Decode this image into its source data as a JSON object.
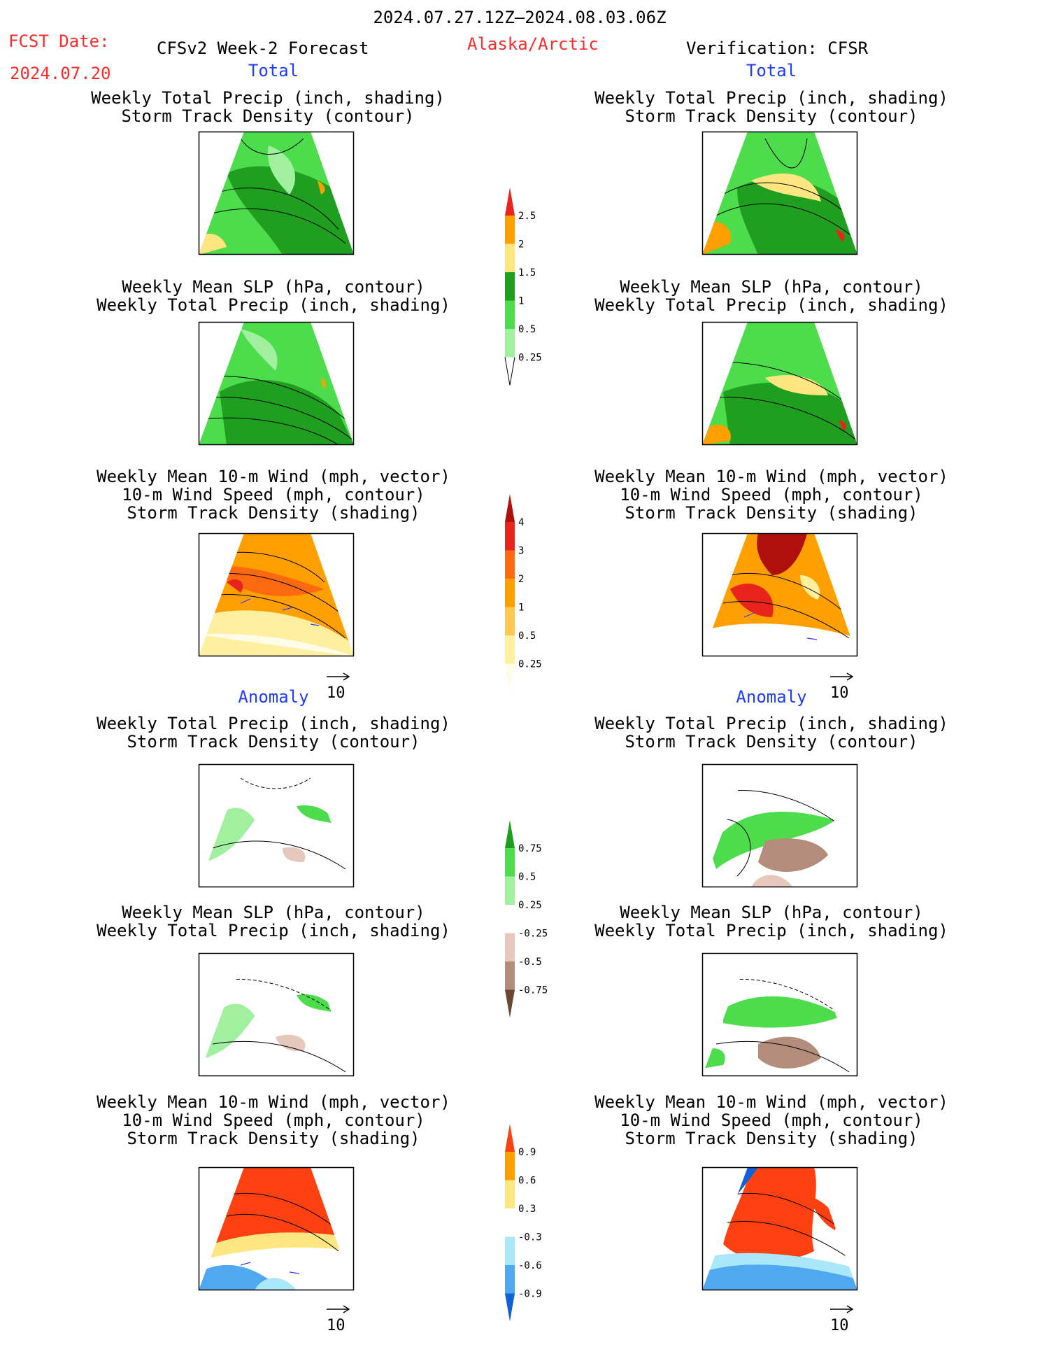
{
  "header": {
    "date_range": "2024.07.27.12Z–2024.08.03.06Z",
    "fcst_label": "FCST Date:",
    "fcst_date": "2024.07.20",
    "forecast_title": "CFSv2 Week-2 Forecast",
    "region": "Alaska/Arctic",
    "verification": "Verification: CFSR"
  },
  "sections": {
    "total": "Total",
    "anomaly": "Anomaly"
  },
  "titles": {
    "precip_storm": [
      "Weekly Total Precip (inch, shading)",
      "Storm Track Density (contour)"
    ],
    "slp_precip": [
      "Weekly Mean SLP (hPa, contour)",
      "Weekly Total Precip (inch, shading)"
    ],
    "wind_storm": [
      "Weekly Mean 10-m Wind (mph, vector)",
      "10-m Wind Speed (mph, contour)",
      "Storm Track Density (shading)"
    ]
  },
  "wind_reference": "10",
  "colorbars": [
    {
      "name": "precip-total",
      "labels": [
        "2.5",
        "2",
        "1.5",
        "1",
        "0.5",
        "0.25"
      ],
      "colors": [
        "#e8241c",
        "#ffa000",
        "#ffe680",
        "#1f9e1f",
        "#4cdc4c",
        "#a0f0a0"
      ]
    },
    {
      "name": "storm-total",
      "labels": [
        "4",
        "3",
        "2",
        "1",
        "0.5",
        "0.25"
      ],
      "colors": [
        "#b0100c",
        "#e8241c",
        "#ff6a10",
        "#ffa000",
        "#ffc850",
        "#fff0a0",
        "#fffce8"
      ]
    },
    {
      "name": "precip-anom",
      "labels": [
        "0.75",
        "0.5",
        "0.25",
        "-0.25",
        "-0.5",
        "-0.75"
      ],
      "colors": [
        "#1f9e1f",
        "#4cdc4c",
        "#a0f0a0",
        "#ffffff",
        "#e6c8bc",
        "#b48c7c",
        "#6e4634"
      ]
    },
    {
      "name": "storm-anom",
      "labels": [
        "0.9",
        "0.6",
        "0.3",
        "-0.3",
        "-0.6",
        "-0.9"
      ],
      "colors": [
        "#ff4010",
        "#ffa000",
        "#ffe680",
        "#ffffff",
        "#a8e8f8",
        "#50a8f0",
        "#1060d8"
      ]
    }
  ],
  "colors": {
    "header_red": "#ff2a2a",
    "section_blue": "#1f3cff"
  }
}
